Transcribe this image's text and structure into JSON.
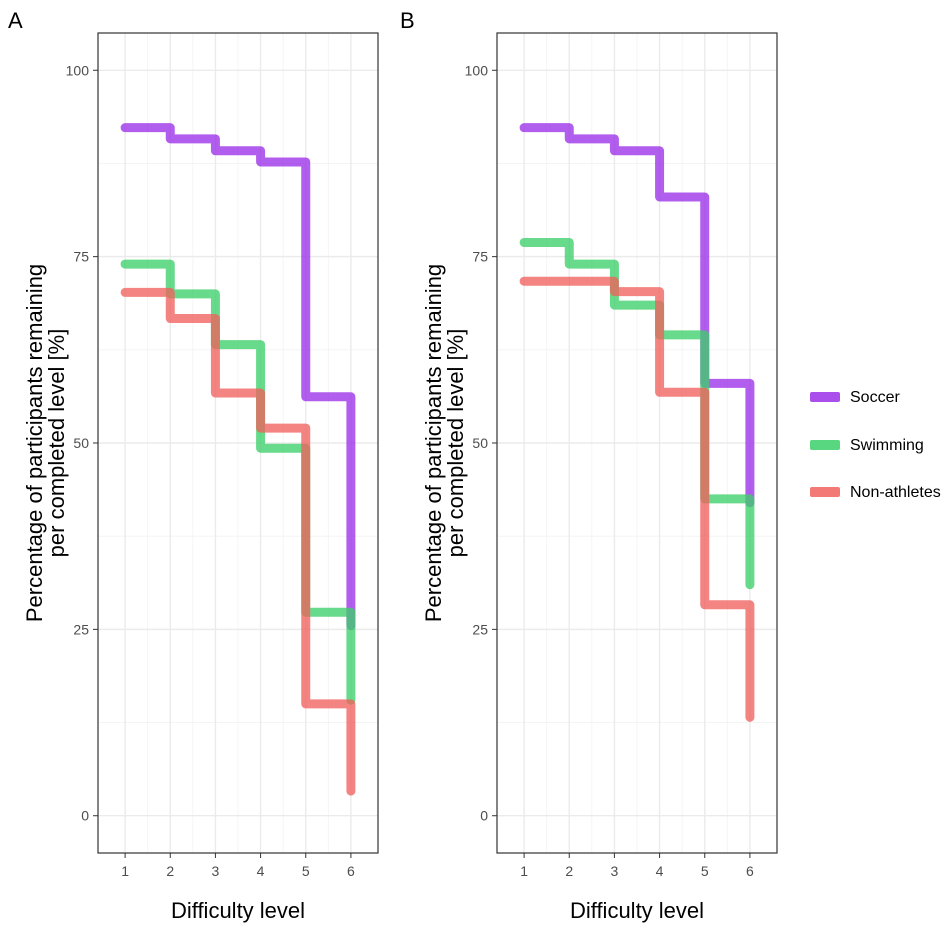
{
  "chart_data": [
    {
      "panel_label": "A",
      "type": "line",
      "step": true,
      "xlabel": "Difficulty level",
      "ylabel": "Percentage of participants remaining per completed level [%]",
      "ylabel_lines": [
        "Percentage of participants remaining",
        "per completed level [%]"
      ],
      "xlim": [
        0.4,
        6.6
      ],
      "ylim": [
        -5,
        105
      ],
      "x_ticks": [
        1,
        2,
        3,
        4,
        5,
        6
      ],
      "y_ticks": [
        0,
        25,
        50,
        75,
        100
      ],
      "grid": true,
      "series": [
        {
          "name": "Soccer",
          "color": "#9b30e8",
          "x": [
            1,
            2,
            3,
            4,
            5,
            6,
            6
          ],
          "y": [
            92.3,
            90.8,
            89.2,
            87.7,
            56.2,
            25.5,
            25.5
          ],
          "end_y": 25.5
        },
        {
          "name": "Swimming",
          "color": "#3ccf6a",
          "x": [
            1,
            2,
            3,
            4,
            5,
            6
          ],
          "y": [
            74.0,
            70.0,
            63.2,
            49.3,
            27.3,
            15.5
          ],
          "end_y": 15.5
        },
        {
          "name": "Non-athletes",
          "color": "#f0625e",
          "x": [
            1,
            2,
            3,
            4,
            5,
            6
          ],
          "y": [
            70.2,
            66.7,
            56.7,
            52.0,
            15.0,
            3.3
          ],
          "end_y": 3.3
        }
      ]
    },
    {
      "panel_label": "B",
      "type": "line",
      "step": true,
      "xlabel": "Difficulty level",
      "ylabel": "Percentage of participants remaining per completed level [%]",
      "ylabel_lines": [
        "Percentage of participants remaining",
        "per completed level [%]"
      ],
      "xlim": [
        0.4,
        6.6
      ],
      "ylim": [
        -5,
        105
      ],
      "x_ticks": [
        1,
        2,
        3,
        4,
        5,
        6
      ],
      "y_ticks": [
        0,
        25,
        50,
        75,
        100
      ],
      "grid": true,
      "series": [
        {
          "name": "Soccer",
          "color": "#9b30e8",
          "x": [
            1,
            2,
            3,
            4,
            5,
            6
          ],
          "y": [
            92.3,
            90.8,
            89.2,
            83.0,
            58.0,
            42.0
          ],
          "end_y": 42.0
        },
        {
          "name": "Swimming",
          "color": "#3ccf6a",
          "x": [
            1,
            2,
            3,
            4,
            5,
            6
          ],
          "y": [
            76.9,
            74.0,
            68.5,
            64.5,
            42.5,
            31.0
          ],
          "end_y": 31.0
        },
        {
          "name": "Non-athletes",
          "color": "#f0625e",
          "x": [
            1,
            2,
            3,
            4,
            5,
            6
          ],
          "y": [
            71.7,
            71.7,
            70.3,
            56.8,
            28.3,
            13.2
          ],
          "end_y": 13.2
        }
      ]
    }
  ],
  "legend": {
    "position": "right",
    "entries": [
      {
        "name": "Soccer",
        "color": "#9b30e8"
      },
      {
        "name": "Swimming",
        "color": "#3ccf6a"
      },
      {
        "name": "Non-athletes",
        "color": "#f0625e"
      }
    ]
  }
}
